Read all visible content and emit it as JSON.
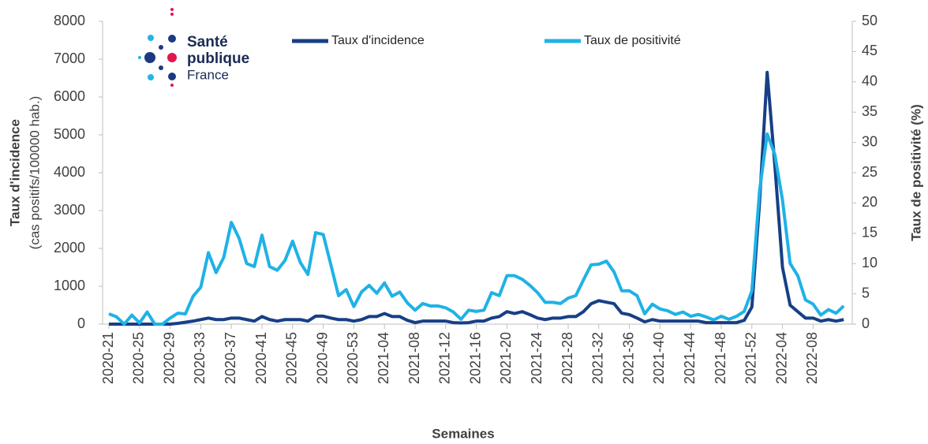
{
  "logo": [
    "Santé",
    "publique",
    "France"
  ],
  "chart_data": {
    "type": "line",
    "xlabel": "Semaines",
    "ylabel": [
      "Taux d'incidence",
      "(cas positifs/100000 hab.)"
    ],
    "y2label": "Taux de positivité (%)",
    "categories": [
      "2020-21",
      null,
      null,
      null,
      "2020-25",
      null,
      null,
      null,
      "2020-29",
      null,
      null,
      null,
      "2020-33",
      null,
      null,
      null,
      "2020-37",
      null,
      null,
      null,
      "2020-41",
      null,
      null,
      null,
      "2020-45",
      null,
      null,
      null,
      "2020-49",
      null,
      null,
      null,
      "2020-53",
      null,
      null,
      null,
      "2021-04",
      null,
      null,
      null,
      "2021-08",
      null,
      null,
      null,
      "2021-12",
      null,
      null,
      null,
      "2021-16",
      null,
      null,
      null,
      "2021-20",
      null,
      null,
      null,
      "2021-24",
      null,
      null,
      null,
      "2021-28",
      null,
      null,
      null,
      "2021-32",
      null,
      null,
      null,
      "2021-36",
      null,
      null,
      null,
      "2021-40",
      null,
      null,
      null,
      "2021-44",
      null,
      null,
      null,
      "2021-48",
      null,
      null,
      null,
      "2021-52",
      null,
      null,
      null,
      "2022-04",
      null,
      null,
      null,
      "2022-08",
      null,
      null,
      null,
      null
    ],
    "series": [
      {
        "name": "Taux d'incidence",
        "color": "#173f86",
        "values": [
          0,
          0,
          0,
          0,
          0,
          0,
          0,
          0,
          0,
          20,
          50,
          80,
          120,
          160,
          120,
          120,
          160,
          160,
          120,
          80,
          200,
          120,
          80,
          120,
          120,
          120,
          80,
          210,
          210,
          160,
          120,
          120,
          80,
          120,
          200,
          200,
          280,
          200,
          200,
          100,
          40,
          80,
          80,
          80,
          80,
          40,
          30,
          40,
          80,
          80,
          160,
          200,
          330,
          280,
          330,
          250,
          160,
          120,
          160,
          160,
          200,
          200,
          330,
          540,
          620,
          580,
          540,
          290,
          250,
          160,
          60,
          120,
          80,
          80,
          80,
          80,
          80,
          80,
          40,
          40,
          40,
          40,
          40,
          100,
          450,
          3200,
          6650,
          4200,
          1500,
          500,
          330,
          160,
          160,
          80,
          120,
          80,
          120
        ]
      },
      {
        "name": "Taux de positivité",
        "color": "#1fb2e6",
        "axis": "y2",
        "values": [
          1.7,
          1.2,
          0,
          1.5,
          0.2,
          2,
          0,
          0,
          1,
          1.8,
          1.7,
          4.6,
          6.1,
          11.8,
          8.5,
          11,
          16.8,
          14.2,
          10,
          9.5,
          14.7,
          9.5,
          8.9,
          10.5,
          13.7,
          10.2,
          8.2,
          15.1,
          14.8,
          9.8,
          4.7,
          5.7,
          2.9,
          5.3,
          6.4,
          5.1,
          6.8,
          4.6,
          5.3,
          3.5,
          2.3,
          3.4,
          3,
          3,
          2.7,
          2,
          0.8,
          2.3,
          2.1,
          2.3,
          5.2,
          4.7,
          8,
          8,
          7.4,
          6.4,
          5.2,
          3.6,
          3.6,
          3.4,
          4.3,
          4.7,
          7.3,
          9.8,
          9.9,
          10.4,
          8.6,
          5.5,
          5.5,
          4.7,
          1.7,
          3.3,
          2.5,
          2.2,
          1.6,
          2,
          1.3,
          1.6,
          1.2,
          0.7,
          1.3,
          0.8,
          1.3,
          2.1,
          5.5,
          22,
          31.4,
          28,
          20.5,
          10,
          8,
          4,
          3.3,
          1.5,
          2.4,
          1.8,
          3
        ]
      }
    ],
    "ylim": [
      0,
      8000
    ],
    "yticks": [
      0,
      1000,
      2000,
      3000,
      4000,
      5000,
      6000,
      7000,
      8000
    ],
    "y2lim": [
      0,
      50
    ],
    "y2ticks": [
      0,
      5,
      10,
      15,
      20,
      25,
      30,
      35,
      40,
      45,
      50
    ],
    "legend": "top"
  }
}
